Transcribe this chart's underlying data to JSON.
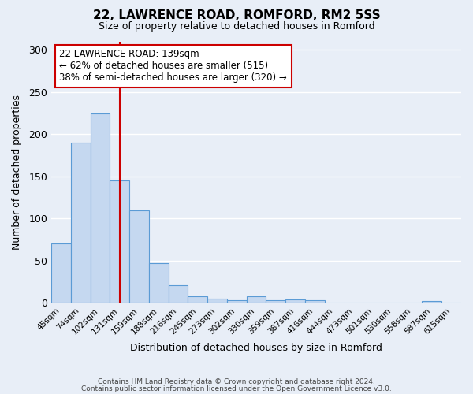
{
  "title": "22, LAWRENCE ROAD, ROMFORD, RM2 5SS",
  "subtitle": "Size of property relative to detached houses in Romford",
  "xlabel": "Distribution of detached houses by size in Romford",
  "ylabel": "Number of detached properties",
  "bar_color": "#c5d8f0",
  "bar_edge_color": "#5b9bd5",
  "bin_labels": [
    "45sqm",
    "74sqm",
    "102sqm",
    "131sqm",
    "159sqm",
    "188sqm",
    "216sqm",
    "245sqm",
    "273sqm",
    "302sqm",
    "330sqm",
    "359sqm",
    "387sqm",
    "416sqm",
    "444sqm",
    "473sqm",
    "501sqm",
    "530sqm",
    "558sqm",
    "587sqm",
    "615sqm"
  ],
  "bar_heights": [
    70,
    190,
    225,
    145,
    110,
    47,
    21,
    8,
    5,
    3,
    8,
    3,
    4,
    3,
    0,
    0,
    0,
    0,
    0,
    2,
    0
  ],
  "ylim": [
    0,
    310
  ],
  "yticks": [
    0,
    50,
    100,
    150,
    200,
    250,
    300
  ],
  "vline_pos": 3.5,
  "vline_color": "#cc0000",
  "annotation_title": "22 LAWRENCE ROAD: 139sqm",
  "annotation_line1": "← 62% of detached houses are smaller (515)",
  "annotation_line2": "38% of semi-detached houses are larger (320) →",
  "annotation_box_color": "#ffffff",
  "annotation_box_edge": "#cc0000",
  "footer1": "Contains HM Land Registry data © Crown copyright and database right 2024.",
  "footer2": "Contains public sector information licensed under the Open Government Licence v3.0.",
  "background_color": "#e8eef7",
  "plot_bg_color": "#e8eef7",
  "grid_color": "#ffffff",
  "figsize": [
    6.0,
    5.0
  ],
  "dpi": 100
}
